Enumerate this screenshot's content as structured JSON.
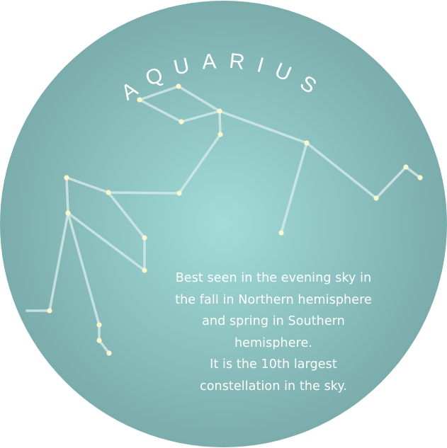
{
  "title": "AQUARIUS",
  "caption_lines": [
    "Best seen in the evening sky in",
    "the fall in Northern hemisphere",
    "and spring in Southern",
    "hemisphere.",
    "It is the 10th largest",
    "constellation in the sky."
  ],
  "colors": {
    "disc_center": "#a2dcd9",
    "disc_edge": "#7aadab",
    "line": "#d6ebe9",
    "star": "#fbf7c8",
    "text": "#ffffff"
  }
}
